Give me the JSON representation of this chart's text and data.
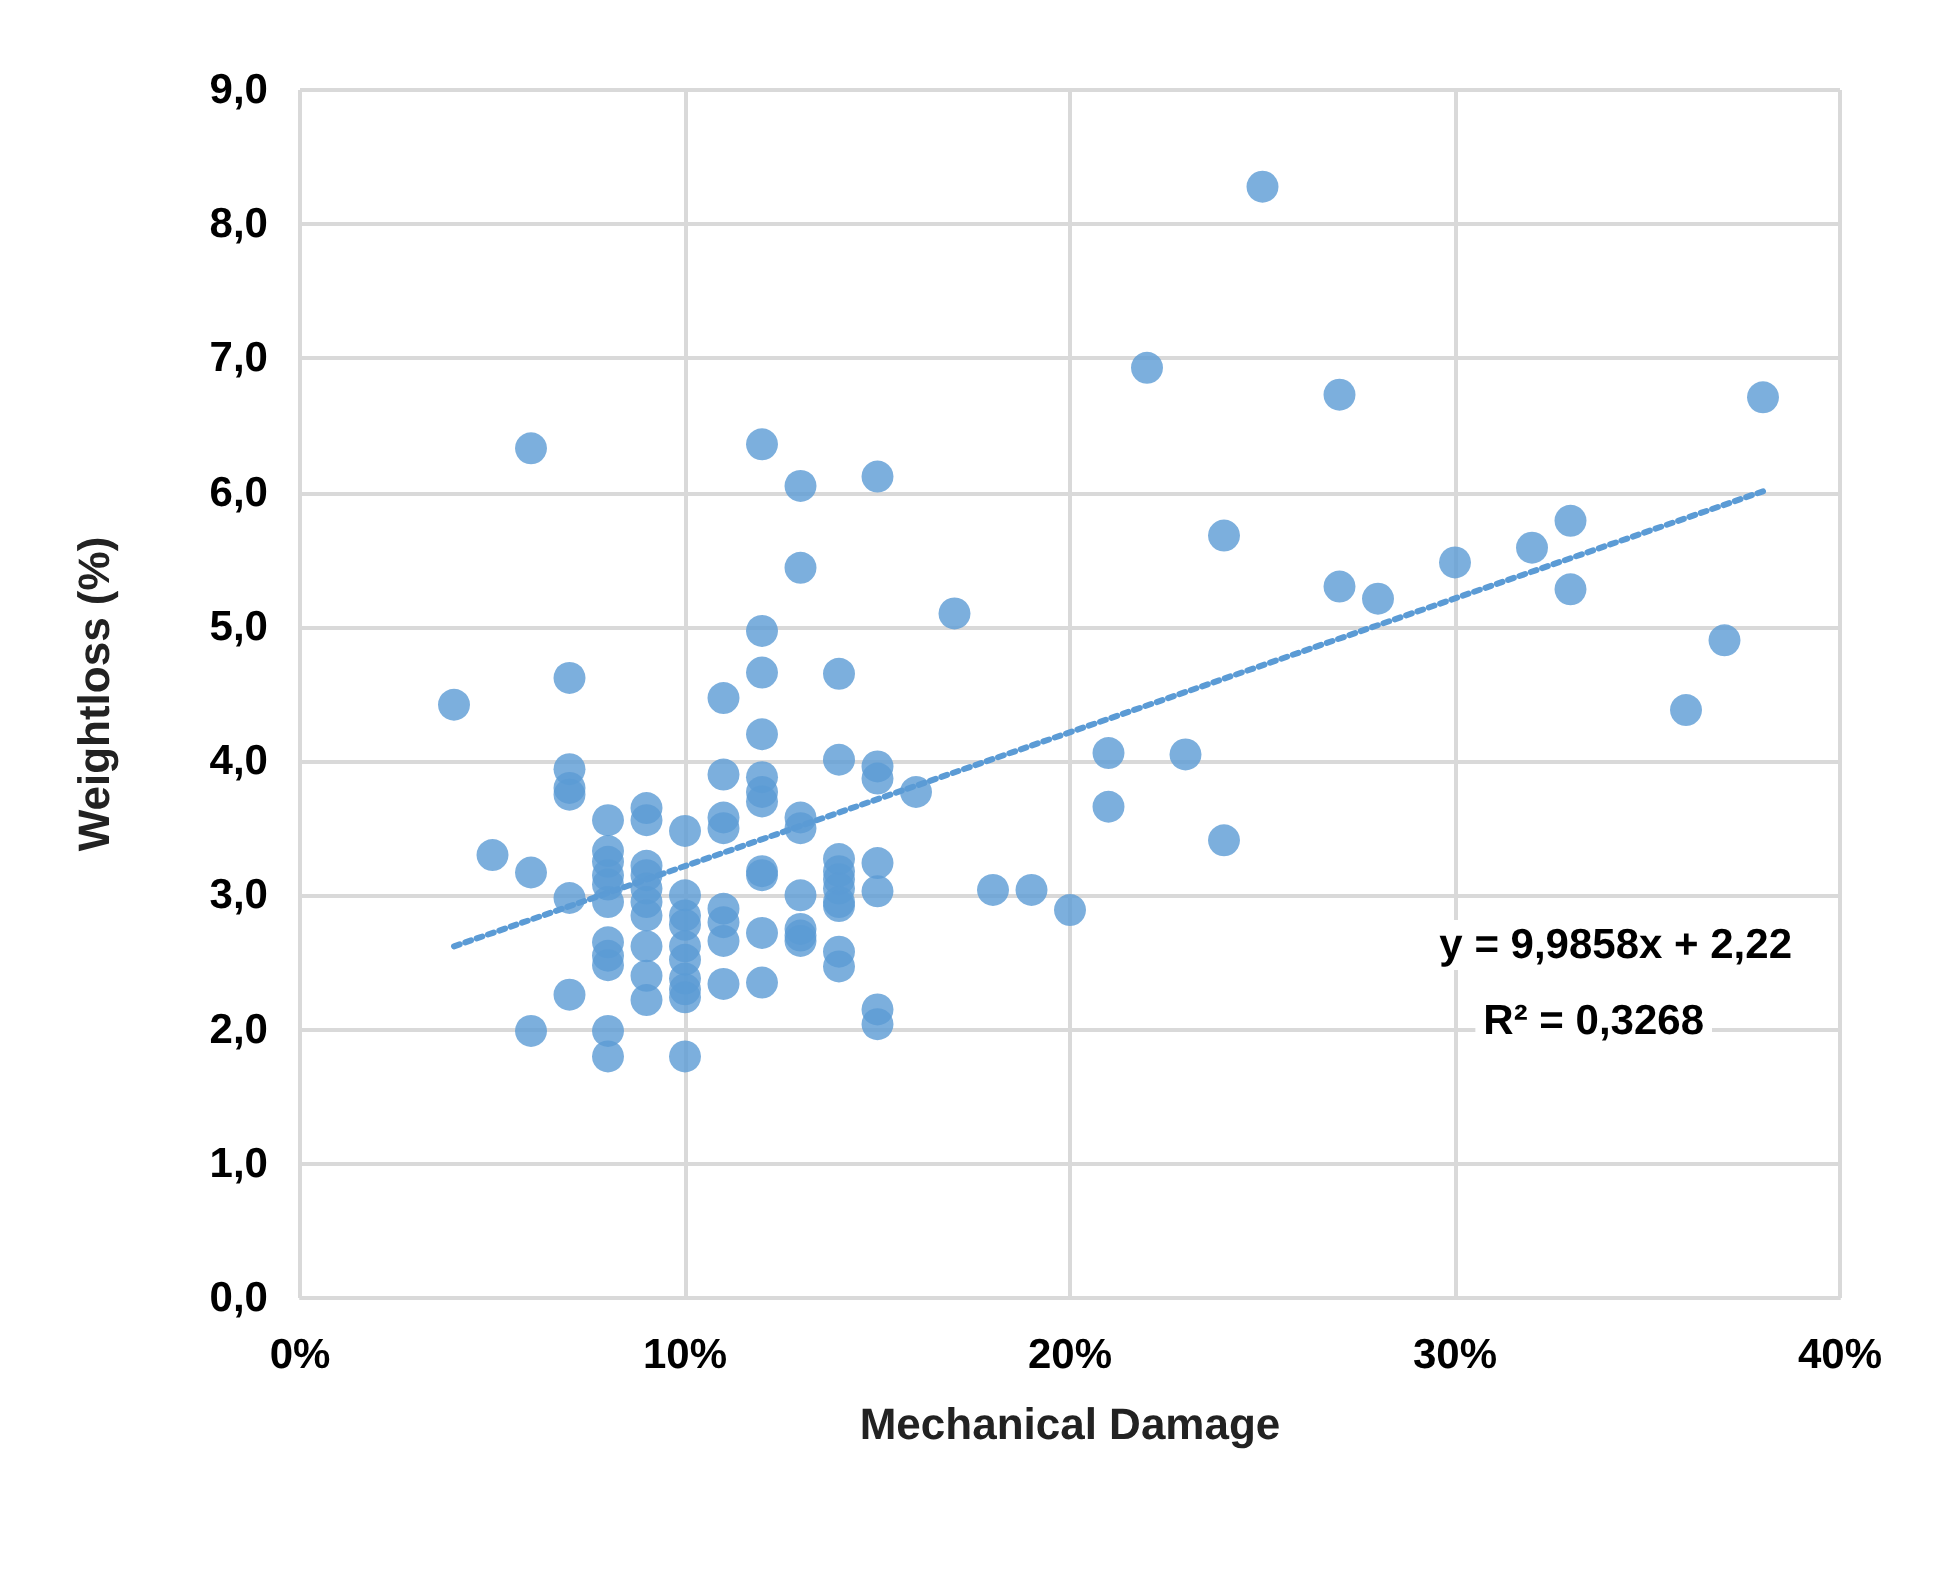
{
  "chart_data": {
    "type": "scatter",
    "xlabel": "Mechanical Damage",
    "ylabel": "Weightloss (%)",
    "xlim": [
      0,
      0.4
    ],
    "xticks": [
      {
        "value": 0,
        "label": "0%"
      },
      {
        "value": 0.1,
        "label": "10%"
      },
      {
        "value": 0.2,
        "label": "20%"
      },
      {
        "value": 0.3,
        "label": "30%"
      },
      {
        "value": 0.4,
        "label": "40%"
      }
    ],
    "ylim": [
      0,
      9
    ],
    "yticks": [
      {
        "value": 0,
        "label": "0,0"
      },
      {
        "value": 1,
        "label": "1,0"
      },
      {
        "value": 2,
        "label": "2,0"
      },
      {
        "value": 3,
        "label": "3,0"
      },
      {
        "value": 4,
        "label": "4,0"
      },
      {
        "value": 5,
        "label": "5,0"
      },
      {
        "value": 6,
        "label": "6,0"
      },
      {
        "value": 7,
        "label": "7,0"
      },
      {
        "value": 8,
        "label": "8,0"
      },
      {
        "value": 9,
        "label": "9,0"
      }
    ],
    "grid": true,
    "marker": "circle",
    "annotations": [
      "y = 9,9858x + 2,22",
      "R² = 0,3268"
    ],
    "series": [
      {
        "color": "#5b9bd5",
        "x": [
          0.04,
          0.05,
          0.06,
          0.06,
          0.06,
          0.07,
          0.07,
          0.07,
          0.07,
          0.07,
          0.07,
          0.08,
          0.08,
          0.08,
          0.08,
          0.08,
          0.08,
          0.08,
          0.08,
          0.08,
          0.08,
          0.08,
          0.09,
          0.09,
          0.09,
          0.09,
          0.09,
          0.09,
          0.09,
          0.09,
          0.09,
          0.09,
          0.1,
          0.1,
          0.1,
          0.1,
          0.1,
          0.1,
          0.1,
          0.1,
          0.1,
          0.1,
          0.11,
          0.11,
          0.11,
          0.11,
          0.11,
          0.11,
          0.11,
          0.11,
          0.12,
          0.12,
          0.12,
          0.12,
          0.12,
          0.12,
          0.12,
          0.12,
          0.12,
          0.12,
          0.12,
          0.13,
          0.13,
          0.13,
          0.13,
          0.13,
          0.13,
          0.13,
          0.13,
          0.14,
          0.14,
          0.14,
          0.14,
          0.14,
          0.14,
          0.14,
          0.14,
          0.14,
          0.14,
          0.15,
          0.15,
          0.15,
          0.15,
          0.15,
          0.15,
          0.15,
          0.16,
          0.17,
          0.18,
          0.19,
          0.2,
          0.21,
          0.21,
          0.22,
          0.23,
          0.24,
          0.24,
          0.25,
          0.27,
          0.27,
          0.28,
          0.3,
          0.32,
          0.33,
          0.33,
          0.36,
          0.37,
          0.38
        ],
        "values": [
          4.42,
          3.3,
          6.33,
          3.17,
          1.99,
          4.62,
          3.94,
          3.8,
          3.75,
          2.98,
          2.26,
          3.56,
          3.33,
          3.25,
          3.15,
          3.08,
          2.95,
          2.65,
          2.55,
          2.48,
          1.99,
          1.8,
          3.65,
          3.56,
          3.22,
          3.15,
          3.05,
          2.95,
          2.85,
          2.62,
          2.4,
          2.22,
          3.48,
          3.0,
          2.85,
          2.78,
          2.62,
          2.52,
          2.38,
          2.3,
          2.24,
          1.8,
          4.47,
          3.9,
          3.58,
          3.5,
          2.9,
          2.8,
          2.66,
          2.34,
          6.36,
          4.97,
          4.66,
          4.2,
          3.88,
          3.77,
          3.7,
          3.18,
          3.15,
          2.72,
          2.35,
          6.05,
          5.44,
          3.58,
          3.5,
          3.0,
          2.75,
          2.7,
          2.66,
          4.65,
          4.01,
          3.27,
          3.18,
          3.12,
          3.05,
          2.95,
          2.92,
          2.58,
          2.47,
          6.12,
          3.96,
          3.87,
          3.24,
          3.03,
          2.15,
          2.04,
          3.77,
          5.1,
          3.04,
          3.04,
          2.89,
          4.06,
          3.66,
          6.93,
          4.05,
          5.68,
          3.41,
          8.28,
          6.73,
          5.3,
          5.21,
          5.48,
          5.59,
          5.79,
          5.28,
          4.38,
          4.9,
          6.71
        ]
      },
      {
        "type": "line",
        "color": "#5b9bd5",
        "line_style": "dotted",
        "marker": "none",
        "x": [
          0.04,
          0.38
        ],
        "values": [
          2.62,
          6.01
        ]
      }
    ]
  }
}
